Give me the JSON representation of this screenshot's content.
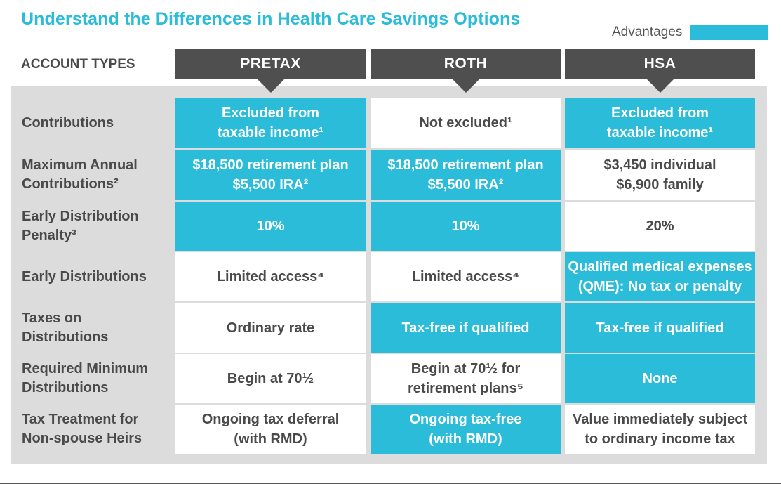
{
  "title": "Understand the Differences in Health Care Savings Options",
  "legend": {
    "label": "Advantages",
    "color": "#2bbcd9"
  },
  "account_types_label": "ACCOUNT TYPES",
  "columns": [
    "PRETAX",
    "ROTH",
    "HSA"
  ],
  "rows": [
    {
      "label_line1": "Contributions",
      "label_line2": "",
      "cells": [
        {
          "line1": "Excluded from",
          "line2": "taxable income¹",
          "advantage": true
        },
        {
          "line1": "Not excluded¹",
          "line2": "",
          "advantage": false
        },
        {
          "line1": "Excluded from",
          "line2": "taxable income¹",
          "advantage": true
        }
      ]
    },
    {
      "label_line1": "Maximum Annual",
      "label_line2": "Contributions²",
      "cells": [
        {
          "line1": "$18,500 retirement plan",
          "line2": "$5,500 IRA²",
          "advantage": true
        },
        {
          "line1": "$18,500 retirement plan",
          "line2": "$5,500 IRA²",
          "advantage": true
        },
        {
          "line1": "$3,450 individual",
          "line2": "$6,900 family",
          "advantage": false
        }
      ]
    },
    {
      "label_line1": "Early Distribution",
      "label_line2": "Penalty³",
      "cells": [
        {
          "line1": "10%",
          "line2": "",
          "advantage": true
        },
        {
          "line1": "10%",
          "line2": "",
          "advantage": true
        },
        {
          "line1": "20%",
          "line2": "",
          "advantage": false
        }
      ]
    },
    {
      "label_line1": "Early Distributions",
      "label_line2": "",
      "cells": [
        {
          "line1": "Limited access⁴",
          "line2": "",
          "advantage": false
        },
        {
          "line1": "Limited access⁴",
          "line2": "",
          "advantage": false
        },
        {
          "line1": "Qualified medical expenses",
          "line2": "(QME): No tax or penalty",
          "advantage": true
        }
      ]
    },
    {
      "label_line1": "Taxes on",
      "label_line2": "Distributions",
      "cells": [
        {
          "line1": "Ordinary rate",
          "line2": "",
          "advantage": false
        },
        {
          "line1": "Tax-free if qualified",
          "line2": "",
          "advantage": true
        },
        {
          "line1": "Tax-free if qualified",
          "line2": "",
          "advantage": true
        }
      ]
    },
    {
      "label_line1": "Required Minimum",
      "label_line2": "Distributions",
      "cells": [
        {
          "line1": "Begin at 70½",
          "line2": "",
          "advantage": false
        },
        {
          "line1": "Begin at 70½ for",
          "line2": "retirement plans⁵",
          "advantage": false
        },
        {
          "line1": "None",
          "line2": "",
          "advantage": true
        }
      ]
    },
    {
      "label_line1": "Tax Treatment for",
      "label_line2": "Non-spouse Heirs",
      "cells": [
        {
          "line1": "Ongoing tax deferral",
          "line2": "(with RMD)",
          "advantage": false
        },
        {
          "line1": "Ongoing tax-free",
          "line2": "(with RMD)",
          "advantage": true
        },
        {
          "line1": "Value immediately subject",
          "line2": "to ordinary income tax",
          "advantage": false
        }
      ]
    }
  ]
}
